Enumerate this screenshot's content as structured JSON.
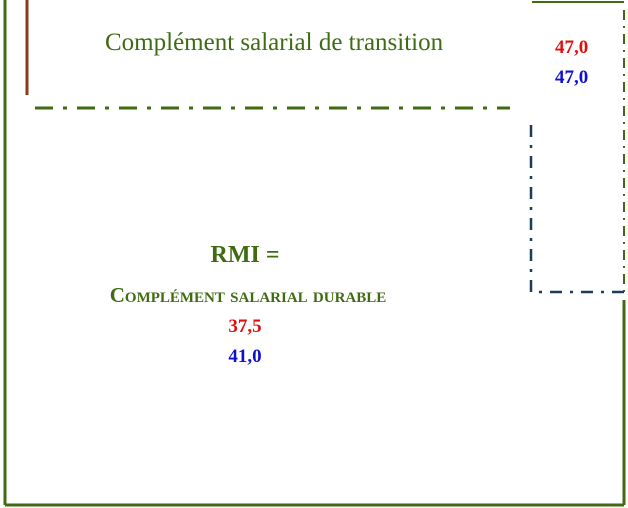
{
  "transition": {
    "label": "Complément salarial de transition",
    "value_red": "47,0",
    "value_blue": "47,0"
  },
  "durable": {
    "title": "RMI =",
    "label": "Complément salarial durable",
    "value_red": "37,5",
    "value_blue": "41,0"
  }
}
